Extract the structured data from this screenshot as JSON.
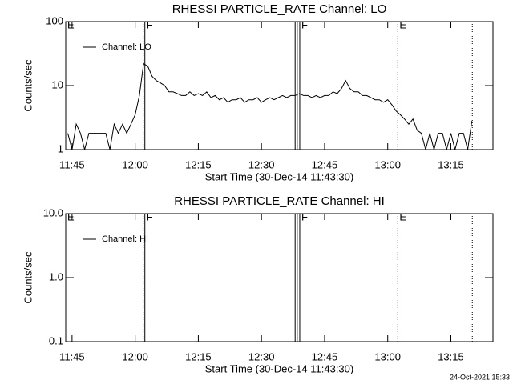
{
  "chart_data": [
    {
      "type": "line",
      "title": "RHESSI PARTICLE_RATE Channel: LO",
      "ylabel": "Counts/sec",
      "xlabel": "Start Time (30-Dec-14 11:43:30)",
      "xlim": [
        703.5,
        805
      ],
      "xticks": [
        {
          "value": 705,
          "label": "11:45"
        },
        {
          "value": 720,
          "label": "12:00"
        },
        {
          "value": 735,
          "label": "12:15"
        },
        {
          "value": 750,
          "label": "12:30"
        },
        {
          "value": 765,
          "label": "12:45"
        },
        {
          "value": 780,
          "label": "13:00"
        },
        {
          "value": 795,
          "label": "13:15"
        }
      ],
      "ylim": [
        1,
        100
      ],
      "yticks": [
        1,
        10,
        100
      ],
      "log_y": true,
      "x": [
        704,
        705,
        706,
        707,
        708,
        709,
        710,
        711,
        712,
        713,
        714,
        715,
        716,
        717,
        718,
        719,
        720,
        721,
        722,
        723,
        724,
        725,
        726,
        727,
        728,
        729,
        730,
        731,
        732,
        733,
        734,
        735,
        736,
        737,
        738,
        739,
        740,
        741,
        742,
        743,
        744,
        745,
        746,
        747,
        748,
        749,
        750,
        751,
        752,
        753,
        754,
        755,
        756,
        757,
        758,
        759,
        760,
        761,
        762,
        763,
        764,
        765,
        766,
        767,
        768,
        769,
        770,
        771,
        772,
        773,
        774,
        775,
        776,
        777,
        778,
        779,
        780,
        781,
        782,
        783,
        784,
        785,
        786,
        787,
        788,
        789,
        790,
        791,
        792,
        793,
        794,
        795,
        796,
        797,
        798,
        799,
        800
      ],
      "series": [
        {
          "name": "Channel: LO",
          "color": "#000000",
          "values": [
            1.8,
            1,
            2.5,
            1.8,
            1,
            1.8,
            1.8,
            1.8,
            1.8,
            1.8,
            1,
            2.5,
            1.8,
            2.5,
            1.8,
            2.5,
            3.5,
            7,
            22,
            20,
            14,
            12,
            11,
            10,
            8,
            8,
            7.5,
            7,
            7,
            8,
            7,
            7.5,
            7,
            8,
            6.5,
            7,
            6,
            6.5,
            5.5,
            6,
            6,
            6.5,
            5.5,
            6,
            6,
            6.5,
            5.5,
            6,
            6.5,
            6,
            6.5,
            7,
            6.5,
            7,
            7,
            7.5,
            7,
            7,
            6.5,
            7,
            6.5,
            7,
            7,
            8,
            7.5,
            9,
            12,
            9,
            8,
            8,
            7,
            7,
            6.5,
            6,
            6,
            5.5,
            6,
            5,
            4,
            3.5,
            3,
            2.5,
            3,
            2,
            1.8,
            1,
            1.8,
            1,
            1.8,
            1.8,
            1,
            1.8,
            1,
            1.8,
            1.8,
            1,
            2.8
          ]
        }
      ],
      "annotations": [
        {
          "text": "E",
          "x": 703.5
        },
        {
          "text": "F",
          "x": 722.3
        },
        {
          "text": "F",
          "x": 759.1
        },
        {
          "text": "E",
          "x": 782.4
        }
      ],
      "vlines": [
        {
          "x": 721.9,
          "style": "dotted"
        },
        {
          "x": 722.3,
          "style": "solid"
        },
        {
          "x": 758,
          "style": "solid"
        },
        {
          "x": 758.5,
          "style": "solid"
        },
        {
          "x": 759.1,
          "style": "solid"
        },
        {
          "x": 782.4,
          "style": "dotted"
        },
        {
          "x": 800.1,
          "style": "dotted"
        }
      ]
    },
    {
      "type": "line",
      "title": "RHESSI PARTICLE_RATE Channel: HI",
      "ylabel": "Counts/sec",
      "xlabel": "Start Time (30-Dec-14 11:43:30)",
      "xlim": [
        703.5,
        805
      ],
      "xticks": [
        {
          "value": 705,
          "label": "11:45"
        },
        {
          "value": 720,
          "label": "12:00"
        },
        {
          "value": 735,
          "label": "12:15"
        },
        {
          "value": 750,
          "label": "12:30"
        },
        {
          "value": 765,
          "label": "12:45"
        },
        {
          "value": 780,
          "label": "13:00"
        },
        {
          "value": 795,
          "label": "13:15"
        }
      ],
      "ylim": [
        0.1,
        10
      ],
      "yticks": [
        {
          "value": 0.1,
          "label": "0.1"
        },
        {
          "value": 1,
          "label": "1.0"
        },
        {
          "value": 10,
          "label": "10.0"
        }
      ],
      "log_y": true,
      "x": [],
      "series": [
        {
          "name": "Channel: HI",
          "color": "#000000",
          "values": []
        }
      ],
      "annotations": [
        {
          "text": "E",
          "x": 703.5
        },
        {
          "text": "F",
          "x": 722.3
        },
        {
          "text": "F",
          "x": 759.1
        },
        {
          "text": "E",
          "x": 782.4
        }
      ],
      "vlines": [
        {
          "x": 721.9,
          "style": "dotted"
        },
        {
          "x": 722.3,
          "style": "solid"
        },
        {
          "x": 758,
          "style": "solid"
        },
        {
          "x": 758.5,
          "style": "solid"
        },
        {
          "x": 759.1,
          "style": "solid"
        },
        {
          "x": 782.4,
          "style": "dotted"
        },
        {
          "x": 800.1,
          "style": "dotted"
        }
      ]
    }
  ],
  "footer": "24-Oct-2021 15:33"
}
